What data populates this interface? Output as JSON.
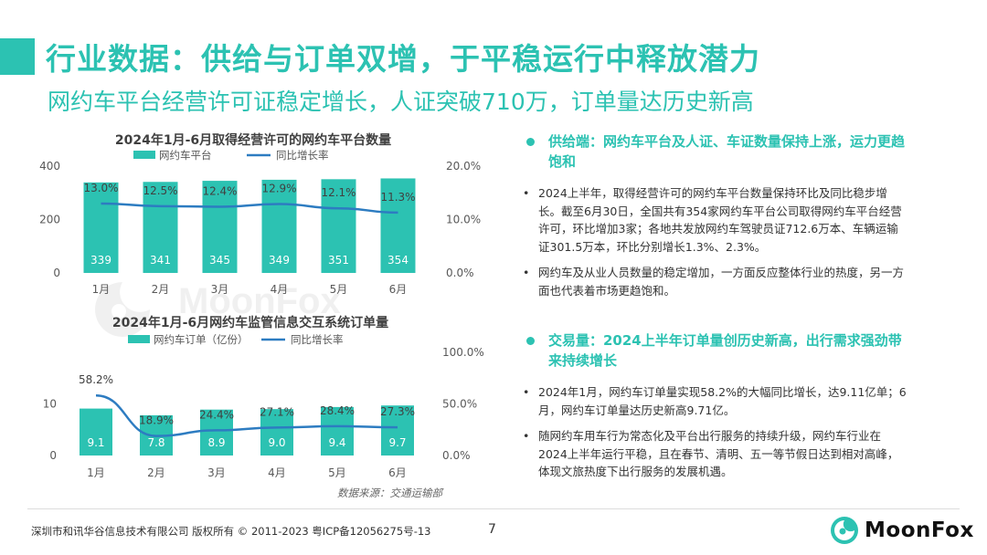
{
  "header": {
    "title": "行业数据：供给与订单双增，于平稳运行中释放潜力",
    "subtitle": "网约车平台经营许可证稳定增长，人证突破710万，订单量达历史新高"
  },
  "chart_data": [
    {
      "type": "bar",
      "title": "2024年1月-6月取得经营许可的网约车平台数量",
      "categories": [
        "1月",
        "2月",
        "3月",
        "4月",
        "5月",
        "6月"
      ],
      "series": [
        {
          "name": "网约车平台",
          "kind": "bar",
          "axis": "left",
          "values": [
            339,
            341,
            345,
            349,
            351,
            354
          ],
          "labels": [
            "339",
            "341",
            "345",
            "349",
            "351",
            "354"
          ]
        },
        {
          "name": "同比增长率",
          "kind": "line",
          "axis": "right",
          "values": [
            13.0,
            12.5,
            12.4,
            12.9,
            12.1,
            11.3
          ],
          "labels": [
            "13.0%",
            "12.5%",
            "12.4%",
            "12.9%",
            "12.1%",
            "11.3%"
          ]
        }
      ],
      "ylim": [
        0,
        400
      ],
      "yticks": [
        "0",
        "200",
        "400"
      ],
      "y2lim": [
        0,
        20
      ],
      "y2ticks": [
        "0.0%",
        "10.0%",
        "20.0%"
      ],
      "legend": "top-center",
      "grid": false
    },
    {
      "type": "bar",
      "title": "2024年1月-6月网约车监管信息交互系统订单量",
      "categories": [
        "1月",
        "2月",
        "3月",
        "4月",
        "5月",
        "6月"
      ],
      "series": [
        {
          "name": "网约车订单（亿份）",
          "kind": "bar",
          "axis": "left",
          "values": [
            9.1,
            7.8,
            8.9,
            9.0,
            9.4,
            9.7
          ],
          "labels": [
            "9.1",
            "7.8",
            "8.9",
            "9.0",
            "9.4",
            "9.7"
          ]
        },
        {
          "name": "同比增长率",
          "kind": "line",
          "axis": "right",
          "values": [
            58.2,
            18.9,
            24.4,
            27.1,
            28.4,
            27.3
          ],
          "labels": [
            "58.2%",
            "18.9%",
            "24.4%",
            "27.1%",
            "28.4%",
            "27.3%"
          ]
        }
      ],
      "ylim": [
        0,
        20
      ],
      "yticks": [
        "0",
        "10"
      ],
      "y2lim": [
        0,
        100
      ],
      "y2ticks": [
        "0.0%",
        "50.0%",
        "100.0%"
      ],
      "legend": "top-center",
      "grid": false
    }
  ],
  "source_note": "数据来源：交通运输部",
  "watermark": "MoonFox",
  "sections": [
    {
      "heading": "供给端：网约车平台及人证、车证数量保持上涨，运力更趋饱和",
      "bullets": [
        "2024上半年，取得经营许可的网约车平台数量保持环比及同比稳步增长。截至6月30日，全国共有354家网约车平台公司取得网约车平台经营许可，环比增加3家；各地共发放网约车驾驶员证712.6万本、车辆运输证301.5万本，环比分别增长1.3%、2.3%。",
        "网约车及从业人员数量的稳定增加，一方面反应整体行业的热度，另一方面也代表着市场更趋饱和。"
      ]
    },
    {
      "heading": "交易量：2024上半年订单量创历史新高，出行需求强劲带来持续增长",
      "bullets": [
        "2024年1月，网约车订单量实现58.2%的大幅同比增长，达9.11亿单；6月，网约车订单量达历史新高9.71亿。",
        "随网约车用车行为常态化及平台出行服务的持续升级，网约车行业在2024上半年运行平稳，且在春节、清明、五一等节假日达到相对高峰，体现文旅热度下出行服务的发展机遇。"
      ]
    }
  ],
  "footer": {
    "copyright": "深圳市和讯华谷信息技术有限公司 版权所有 © 2011-2023 粤ICP备12056275号-13",
    "page_number": "7",
    "logo_text": "MoonFox"
  },
  "colors": {
    "accent": "#2cc2b2",
    "bar": "#2cc2b2",
    "line": "#2d7cc1",
    "text": "#333333",
    "axis_text": "#595959"
  }
}
